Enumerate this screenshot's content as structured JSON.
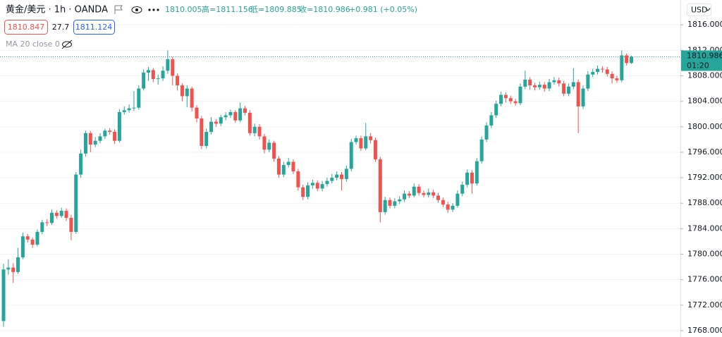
{
  "chart_data": {
    "type": "candlestick",
    "symbol": "黄金/美元 · 1h · OANDA",
    "ohlc_texts": [
      "1810.005",
      "高=1811.156",
      "低=1809.885",
      "收=1810.986",
      "+0.981 (+0.05%)"
    ],
    "sell": "1810.847",
    "spread": "27.7",
    "buy": "1811.124",
    "indicator": "MA 20 close 0",
    "currency": "USD",
    "last_price": 1810.986,
    "countdown": "01:20",
    "up_color": "#26a69a",
    "down_color": "#ef5350",
    "ylim": [
      1767.0,
      1819.9
    ],
    "yticks": [
      {
        "value": 1816,
        "label": "1816.000"
      },
      {
        "value": 1812,
        "label": "1812.000"
      },
      {
        "value": 1808,
        "label": "1808.000"
      },
      {
        "value": 1804,
        "label": "1804.000"
      },
      {
        "value": 1800,
        "label": "1800.000"
      },
      {
        "value": 1796,
        "label": "1796.000"
      },
      {
        "value": 1792,
        "label": "1792.000"
      },
      {
        "value": 1788,
        "label": "1788.000"
      },
      {
        "value": 1784,
        "label": "1784.000"
      },
      {
        "value": 1780,
        "label": "1780.000"
      },
      {
        "value": 1776,
        "label": "1776.000"
      },
      {
        "value": 1772,
        "label": "1772.000"
      },
      {
        "value": 1768,
        "label": "1768.000"
      }
    ],
    "grid": true,
    "open": [
      1769.5,
      1777.6,
      1777.9,
      1777.2,
      1779.5,
      1782.8,
      1782.3,
      1781.5,
      1783.5,
      1785.0,
      1784.9,
      1786.5,
      1786.0,
      1786.8,
      1785.7,
      1783.5,
      1792.5,
      1795.8,
      1799.0,
      1797.2,
      1797.8,
      1798.5,
      1799.4,
      1799.2,
      1797.8,
      1802.3,
      1802.6,
      1802.9,
      1803.0,
      1806.0,
      1808.5,
      1808.9,
      1807.5,
      1807.6,
      1808.8,
      1810.6,
      1808.0,
      1806.5,
      1804.8,
      1806.0,
      1803.0,
      1801.3,
      1797.0,
      1799.2,
      1800.8,
      1800.5,
      1801.5,
      1801.8,
      1802.3,
      1801.0,
      1802.9,
      1802.2,
      1799.0,
      1800.0,
      1798.5,
      1796.4,
      1797.5,
      1795.0,
      1792.5,
      1794.0,
      1794.5,
      1793.0,
      1790.5,
      1789.0,
      1790.8,
      1791.2,
      1790.3,
      1791.0,
      1791.5,
      1792.0,
      1792.5,
      1791.8,
      1793.4,
      1797.6,
      1798.2,
      1796.6,
      1798.5,
      1797.9,
      1794.9,
      1786.6,
      1788.5,
      1787.6,
      1788.3,
      1788.6,
      1789.5,
      1789.2,
      1790.6,
      1789.6,
      1789.3,
      1789.7,
      1789.2,
      1788.5,
      1787.8,
      1787.0,
      1787.6,
      1789.5,
      1790.9,
      1792.8,
      1791.1,
      1794.6,
      1798.0,
      1800.2,
      1801.8,
      1803.6,
      1805.0,
      1804.5,
      1804.0,
      1803.7,
      1806.3,
      1807.4,
      1806.5,
      1806.2,
      1806.6,
      1806.0,
      1807.0,
      1807.3,
      1806.8,
      1805.2,
      1806.3,
      1807.0,
      1803.2,
      1806.0,
      1808.2,
      1808.6,
      1809.1,
      1809.0,
      1808.3,
      1807.6,
      1807.3,
      1811.2,
      1810.005
    ],
    "high": [
      1778.5,
      1779.2,
      1778.6,
      1781.0,
      1783.4,
      1783.2,
      1782.6,
      1783.9,
      1785.4,
      1785.5,
      1787.0,
      1786.9,
      1787.3,
      1787.2,
      1786.2,
      1792.9,
      1796.4,
      1799.4,
      1799.3,
      1798.4,
      1799.0,
      1799.7,
      1799.8,
      1799.6,
      1802.8,
      1803.2,
      1803.5,
      1805.6,
      1806.5,
      1809.0,
      1809.4,
      1809.2,
      1808.2,
      1809.5,
      1812.0,
      1811.0,
      1808.4,
      1806.8,
      1806.5,
      1806.3,
      1803.4,
      1801.7,
      1799.7,
      1801.5,
      1801.2,
      1801.9,
      1802.3,
      1802.7,
      1802.6,
      1803.8,
      1803.3,
      1802.6,
      1800.5,
      1800.4,
      1798.9,
      1798.0,
      1797.8,
      1795.4,
      1794.5,
      1795.1,
      1794.9,
      1793.4,
      1790.9,
      1791.3,
      1791.7,
      1791.6,
      1791.5,
      1792.0,
      1792.6,
      1793.0,
      1792.9,
      1793.9,
      1798.1,
      1798.6,
      1798.6,
      1800.6,
      1799.0,
      1798.3,
      1795.3,
      1789.0,
      1788.9,
      1788.8,
      1789.1,
      1790.0,
      1789.9,
      1791.1,
      1791.0,
      1790.0,
      1790.3,
      1790.1,
      1789.6,
      1788.9,
      1788.2,
      1788.0,
      1790.0,
      1791.4,
      1793.3,
      1793.2,
      1795.1,
      1798.5,
      1800.7,
      1802.3,
      1804.1,
      1805.5,
      1805.4,
      1804.9,
      1804.4,
      1806.8,
      1808.8,
      1807.8,
      1806.9,
      1807.1,
      1807.0,
      1807.5,
      1807.8,
      1807.7,
      1807.2,
      1806.8,
      1809.2,
      1807.4,
      1806.5,
      1808.7,
      1809.1,
      1809.6,
      1809.5,
      1809.4,
      1808.7,
      1808.0,
      1812.0,
      1811.5,
      1811.156
    ],
    "low": [
      1768.6,
      1776.8,
      1775.5,
      1776.9,
      1779.2,
      1781.8,
      1781.0,
      1781.2,
      1783.1,
      1784.4,
      1784.6,
      1785.6,
      1785.7,
      1785.2,
      1782.2,
      1783.2,
      1792.0,
      1795.3,
      1796.0,
      1796.8,
      1797.4,
      1798.1,
      1798.8,
      1797.3,
      1797.5,
      1801.9,
      1802.2,
      1802.5,
      1802.7,
      1805.7,
      1807.2,
      1807.0,
      1806.6,
      1807.2,
      1808.3,
      1806.5,
      1805.7,
      1804.0,
      1803.1,
      1802.4,
      1800.7,
      1796.5,
      1796.6,
      1798.8,
      1800.0,
      1800.1,
      1801.0,
      1801.4,
      1800.6,
      1800.7,
      1801.8,
      1798.6,
      1798.5,
      1798.0,
      1795.8,
      1796.0,
      1794.5,
      1792.0,
      1792.1,
      1793.6,
      1792.6,
      1790.0,
      1788.5,
      1788.6,
      1790.3,
      1789.9,
      1789.9,
      1790.6,
      1791.1,
      1791.6,
      1790.0,
      1791.4,
      1793.0,
      1797.2,
      1796.2,
      1796.3,
      1797.4,
      1794.5,
      1785.0,
      1786.2,
      1787.2,
      1787.2,
      1787.9,
      1788.2,
      1788.8,
      1788.9,
      1789.2,
      1788.9,
      1788.9,
      1788.8,
      1788.1,
      1787.4,
      1786.5,
      1786.6,
      1787.3,
      1789.1,
      1790.5,
      1789.5,
      1790.8,
      1794.2,
      1797.6,
      1799.8,
      1801.4,
      1803.2,
      1803.8,
      1803.6,
      1803.3,
      1803.4,
      1805.9,
      1805.8,
      1805.7,
      1805.8,
      1805.5,
      1805.6,
      1806.6,
      1806.3,
      1804.8,
      1804.8,
      1805.9,
      1799.0,
      1802.8,
      1805.6,
      1807.8,
      1808.2,
      1808.5,
      1807.9,
      1806.8,
      1806.9,
      1807.0,
      1809.6,
      1809.885
    ],
    "close": [
      1777.6,
      1777.9,
      1777.2,
      1779.5,
      1782.8,
      1782.3,
      1781.5,
      1783.5,
      1785.0,
      1784.9,
      1786.5,
      1786.0,
      1786.8,
      1785.7,
      1783.5,
      1792.5,
      1795.8,
      1799.0,
      1797.2,
      1797.8,
      1798.5,
      1799.4,
      1799.2,
      1797.8,
      1802.3,
      1802.6,
      1802.9,
      1803.0,
      1806.0,
      1808.5,
      1808.9,
      1807.5,
      1807.6,
      1808.8,
      1810.6,
      1808.0,
      1806.5,
      1804.8,
      1806.0,
      1803.0,
      1801.3,
      1797.0,
      1799.2,
      1800.8,
      1800.5,
      1801.5,
      1801.8,
      1802.3,
      1801.0,
      1802.9,
      1802.2,
      1799.0,
      1800.0,
      1798.5,
      1796.4,
      1797.5,
      1795.0,
      1792.5,
      1794.0,
      1794.5,
      1793.0,
      1790.5,
      1789.0,
      1790.8,
      1791.2,
      1790.3,
      1791.0,
      1791.5,
      1792.0,
      1792.5,
      1791.8,
      1793.4,
      1797.6,
      1798.2,
      1796.6,
      1798.5,
      1797.9,
      1794.9,
      1786.6,
      1788.5,
      1787.6,
      1788.3,
      1788.6,
      1789.5,
      1789.2,
      1790.6,
      1789.6,
      1789.3,
      1789.7,
      1789.2,
      1788.5,
      1787.8,
      1787.0,
      1787.6,
      1789.5,
      1790.9,
      1792.8,
      1791.1,
      1794.6,
      1798.0,
      1800.2,
      1801.8,
      1803.6,
      1805.0,
      1804.5,
      1804.0,
      1803.7,
      1806.3,
      1807.4,
      1806.5,
      1806.2,
      1806.6,
      1806.0,
      1807.0,
      1807.3,
      1806.8,
      1805.2,
      1806.3,
      1807.0,
      1803.2,
      1806.0,
      1808.2,
      1808.6,
      1809.1,
      1809.0,
      1808.3,
      1807.6,
      1807.3,
      1811.2,
      1810.0,
      1810.986
    ]
  }
}
